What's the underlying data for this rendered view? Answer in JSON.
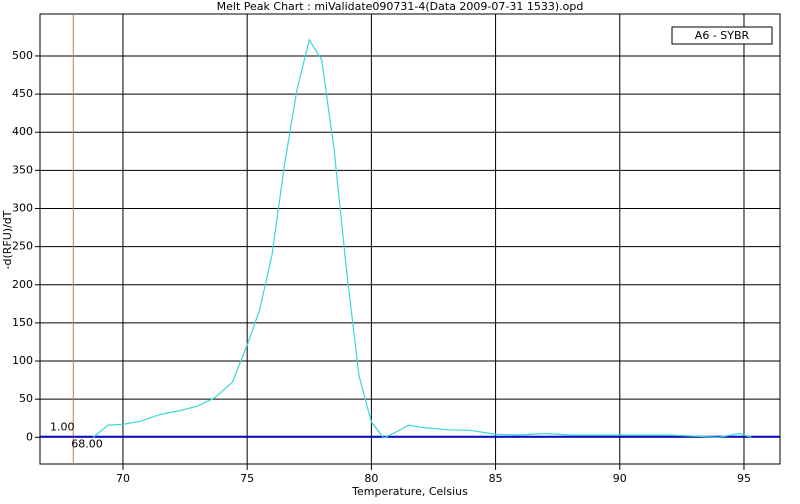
{
  "chart_data": {
    "type": "line",
    "title": "Melt Peak Chart : miValidate090731-4(Data 2009-07-31 1533).opd",
    "xlabel": "Temperature, Celsius",
    "ylabel": "-d(RFU)/dT",
    "x": [
      68.8,
      69.4,
      70,
      70.7,
      71.5,
      72.3,
      73.0,
      73.7,
      74.4,
      75.0,
      75.5,
      76.0,
      76.5,
      77.0,
      77.5,
      78.0,
      78.5,
      79.0,
      79.5,
      80.0,
      80.5,
      81.0,
      81.5,
      82.0,
      83.0,
      84.0,
      85.0,
      86.0,
      87.0,
      88.0,
      90.0,
      92.0,
      94.0,
      94.8,
      95.3
    ],
    "series": [
      {
        "name": "A6 - SYBR",
        "color": "#3ad8d8",
        "values": [
          0,
          16,
          17,
          21,
          30,
          35,
          41,
          52,
          72,
          121,
          167,
          239,
          357,
          455,
          521,
          495,
          377,
          219,
          81,
          20,
          -1,
          7,
          16,
          13,
          10,
          9,
          4,
          3,
          5,
          3,
          3,
          3,
          0,
          5,
          0
        ]
      }
    ],
    "xlim": [
      66.66,
      96.45
    ],
    "ylim": [
      -35,
      555
    ],
    "xticks": [
      70,
      75,
      80,
      85,
      90,
      95
    ],
    "yticks": [
      0,
      50,
      100,
      150,
      200,
      250,
      300,
      350,
      400,
      450,
      500
    ],
    "grid": true,
    "legend": "upper right",
    "threshold": {
      "value": 1,
      "label": "1.00",
      "color": "#0000ff"
    },
    "marker_line": {
      "value": 68,
      "label": "68.00",
      "color": "#e07040"
    }
  }
}
